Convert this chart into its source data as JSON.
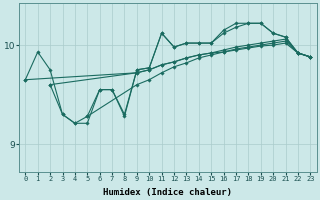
{
  "xlabel": "Humidex (Indice chaleur)",
  "ylabel": "",
  "background_color": "#cce8e8",
  "grid_color": "#aacccc",
  "line_color": "#1a6b60",
  "xlim": [
    -0.5,
    23.5
  ],
  "ylim": [
    8.72,
    10.42
  ],
  "yticks": [
    9,
    10
  ],
  "xticks": [
    0,
    1,
    2,
    3,
    4,
    5,
    6,
    7,
    8,
    9,
    10,
    11,
    12,
    13,
    14,
    15,
    16,
    17,
    18,
    19,
    20,
    21,
    22,
    23
  ],
  "series": [
    {
      "x": [
        0,
        1,
        2,
        3,
        4,
        5,
        6,
        7,
        8,
        9,
        10,
        11,
        12,
        13,
        14,
        15,
        16,
        17,
        18,
        19,
        20,
        21,
        22,
        23
      ],
      "y": [
        9.65,
        9.93,
        9.75,
        9.3,
        9.21,
        9.21,
        9.55,
        9.55,
        9.28,
        9.75,
        9.77,
        10.12,
        9.98,
        10.02,
        10.02,
        10.02,
        10.15,
        10.22,
        10.22,
        10.22,
        10.12,
        10.08,
        9.92,
        9.88
      ]
    },
    {
      "x": [
        0,
        9,
        10,
        11,
        12,
        13,
        14,
        15,
        16,
        17,
        18,
        19,
        20,
        21,
        22,
        23
      ],
      "y": [
        9.65,
        9.72,
        9.75,
        9.8,
        9.83,
        9.87,
        9.9,
        9.92,
        9.93,
        9.95,
        9.97,
        9.99,
        10.0,
        10.02,
        9.92,
        9.88
      ]
    },
    {
      "x": [
        2,
        9,
        10,
        11,
        12,
        13,
        14,
        15,
        16,
        17,
        18,
        19,
        20,
        21,
        22,
        23
      ],
      "y": [
        9.6,
        9.72,
        9.75,
        9.8,
        9.83,
        9.87,
        9.9,
        9.92,
        9.95,
        9.98,
        10.0,
        10.02,
        10.04,
        10.06,
        9.92,
        9.88
      ]
    },
    {
      "x": [
        2,
        3,
        4,
        5,
        6,
        7,
        8,
        9,
        10,
        11,
        12,
        13,
        14,
        15,
        16,
        17,
        18,
        19,
        20,
        21,
        22,
        23
      ],
      "y": [
        9.6,
        9.3,
        9.21,
        9.28,
        9.55,
        9.55,
        9.3,
        9.75,
        9.77,
        10.12,
        9.98,
        10.02,
        10.02,
        10.02,
        10.12,
        10.18,
        10.22,
        10.22,
        10.12,
        10.08,
        9.92,
        9.88
      ]
    },
    {
      "x": [
        5,
        9,
        10,
        11,
        12,
        13,
        14,
        15,
        16,
        17,
        18,
        19,
        20,
        21,
        22,
        23
      ],
      "y": [
        9.28,
        9.6,
        9.65,
        9.72,
        9.78,
        9.82,
        9.87,
        9.9,
        9.93,
        9.96,
        9.98,
        10.0,
        10.02,
        10.04,
        9.92,
        9.88
      ]
    }
  ]
}
